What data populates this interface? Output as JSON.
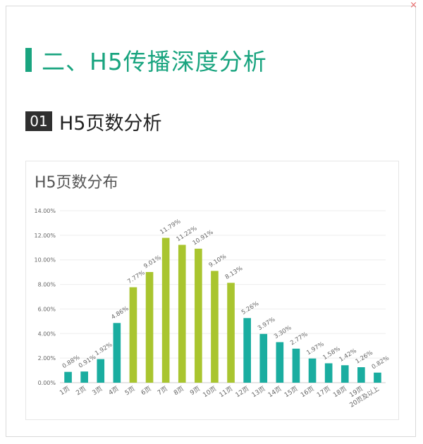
{
  "corner_mark": "×",
  "section": {
    "title": "二、H5传播深度分析"
  },
  "subsection": {
    "number": "01",
    "title": "H5页数分析"
  },
  "colors": {
    "accent": "#19a47f",
    "bar_teal": "#1aada0",
    "bar_green": "#a9c52f"
  },
  "chart_data": {
    "type": "bar",
    "title": "H5页数分布",
    "categories": [
      "1页",
      "2页",
      "3页",
      "4页",
      "5页",
      "6页",
      "7页",
      "8页",
      "9页",
      "10页",
      "11页",
      "12页",
      "13页",
      "14页",
      "15页",
      "16页",
      "17页",
      "18页",
      "19页",
      "20页及以上"
    ],
    "values": [
      0.88,
      0.91,
      1.92,
      4.86,
      7.77,
      9.01,
      11.79,
      11.22,
      10.91,
      9.1,
      8.13,
      5.26,
      3.97,
      3.3,
      2.77,
      1.97,
      1.58,
      1.42,
      1.26,
      0.82
    ],
    "data_labels": [
      "0.88%",
      "0.91%",
      "1.92%",
      "4.86%",
      "7.77%",
      "9.01%",
      "11.79%",
      "11.22%",
      "10.91%",
      "9.10%",
      "8.13%",
      "5.26%",
      "3.97%",
      "3.30%",
      "2.77%",
      "1.97%",
      "1.58%",
      "1.42%",
      "1.26%",
      "0.82%"
    ],
    "bar_colors": [
      "#1aada0",
      "#1aada0",
      "#1aada0",
      "#1aada0",
      "#a9c52f",
      "#a9c52f",
      "#a9c52f",
      "#a9c52f",
      "#a9c52f",
      "#a9c52f",
      "#a9c52f",
      "#1aada0",
      "#1aada0",
      "#1aada0",
      "#1aada0",
      "#1aada0",
      "#1aada0",
      "#1aada0",
      "#1aada0",
      "#1aada0"
    ],
    "y_ticks": [
      "0.00%",
      "2.00%",
      "4.00%",
      "6.00%",
      "8.00%",
      "10.00%",
      "12.00%",
      "14.00%"
    ],
    "ylim": [
      0,
      14
    ],
    "xlabel": "",
    "ylabel": "",
    "grid": true
  }
}
